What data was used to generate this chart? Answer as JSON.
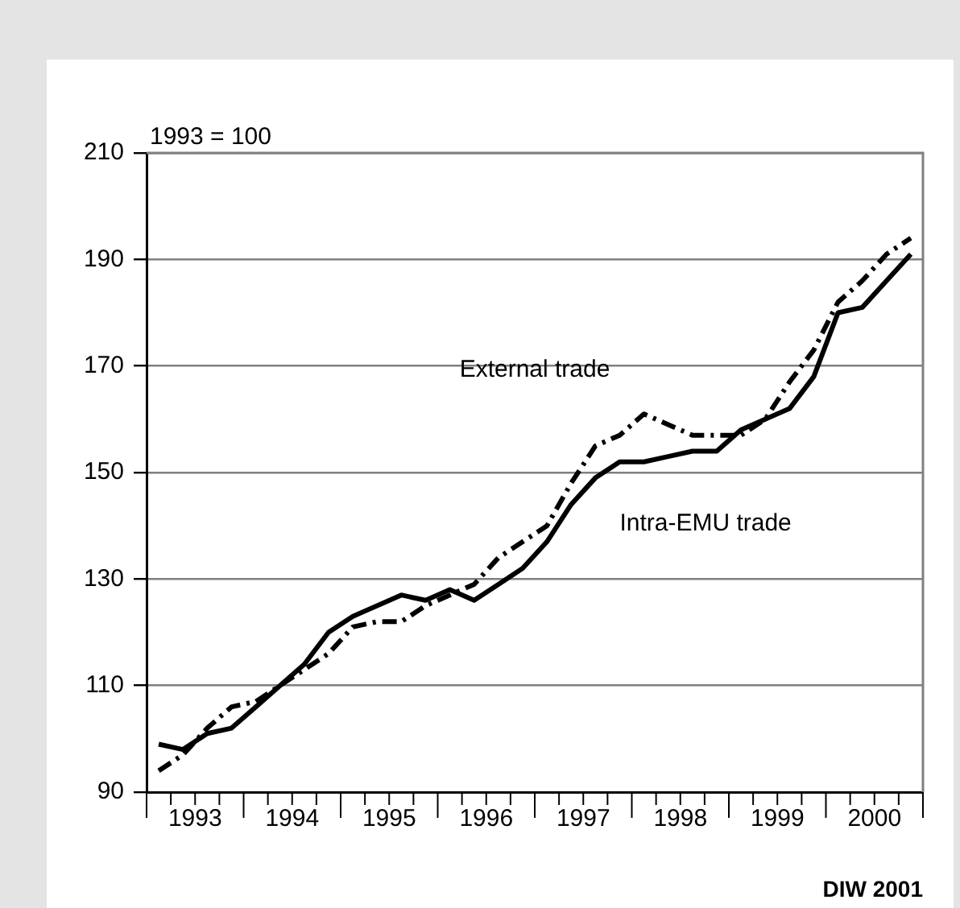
{
  "chart_data": {
    "type": "line",
    "ylabel": "1993 = 100",
    "annotations": [
      "DIW 2001"
    ],
    "x": [
      1993.125,
      1993.375,
      1993.625,
      1993.875,
      1994.125,
      1994.375,
      1994.625,
      1994.875,
      1995.125,
      1995.375,
      1995.625,
      1995.875,
      1996.125,
      1996.375,
      1996.625,
      1996.875,
      1997.125,
      1997.375,
      1997.625,
      1997.875,
      1998.125,
      1998.375,
      1998.625,
      1998.875,
      1999.125,
      1999.375,
      1999.625,
      1999.875,
      2000.125,
      2000.375,
      2000.625,
      2000.875
    ],
    "series": [
      {
        "name": "External trade",
        "color": "#000000",
        "line_style": "dashed",
        "values": [
          94,
          97,
          102,
          106,
          107,
          110,
          113,
          116,
          121,
          122,
          122,
          125,
          127,
          129,
          134,
          137,
          140,
          148,
          155,
          157,
          161,
          159,
          157,
          157,
          157,
          160,
          167,
          173,
          182,
          186,
          191,
          194
        ]
      },
      {
        "name": "Intra-EMU trade",
        "color": "#000000",
        "line_style": "solid",
        "values": [
          99,
          98,
          101,
          102,
          106,
          110,
          114,
          120,
          123,
          125,
          127,
          126,
          128,
          126,
          129,
          132,
          137,
          144,
          149,
          152,
          152,
          153,
          154,
          154,
          158,
          160,
          162,
          168,
          180,
          181,
          186,
          191
        ]
      }
    ],
    "xlim": [
      1993,
      2001
    ],
    "xticks": [
      {
        "value": 1993.5,
        "label": "1993"
      },
      {
        "value": 1994.5,
        "label": "1994"
      },
      {
        "value": 1995.5,
        "label": "1995"
      },
      {
        "value": 1996.5,
        "label": "1996"
      },
      {
        "value": 1997.5,
        "label": "1997"
      },
      {
        "value": 1998.5,
        "label": "1998"
      },
      {
        "value": 1999.5,
        "label": "1999"
      },
      {
        "value": 2000.5,
        "label": "2000"
      }
    ],
    "ylim": [
      90,
      210
    ],
    "yticks": [
      90,
      110,
      130,
      150,
      170,
      190,
      210
    ],
    "grid": "y",
    "legend": false,
    "marker": "none"
  }
}
